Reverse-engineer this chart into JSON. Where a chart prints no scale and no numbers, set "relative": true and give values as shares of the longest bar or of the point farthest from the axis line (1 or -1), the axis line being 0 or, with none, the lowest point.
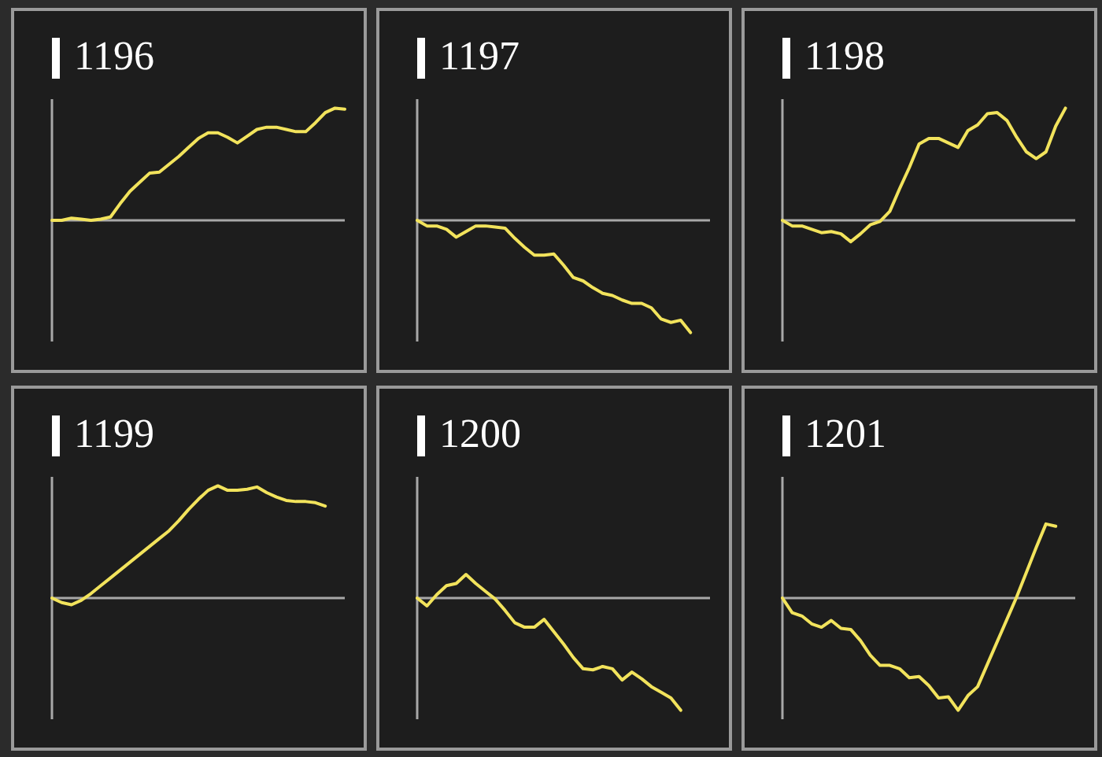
{
  "chart_data": [
    {
      "type": "line",
      "title": "1196",
      "relative": true,
      "categories": [
        null,
        null,
        null,
        null,
        null,
        null,
        null,
        null,
        null,
        null,
        null,
        null,
        null,
        null,
        null,
        null,
        null,
        null,
        null,
        null,
        null,
        null,
        null,
        null,
        null,
        null,
        null,
        null,
        null,
        null,
        null
      ],
      "series": [
        {
          "color": "#f2e35c",
          "values": [
            0,
            0,
            0.02,
            0.01,
            0,
            0.01,
            0.03,
            0.15,
            0.26,
            0.34,
            0.42,
            0.43,
            0.5,
            0.57,
            0.65,
            0.73,
            0.78,
            0.78,
            0.74,
            0.69,
            0.75,
            0.81,
            0.83,
            0.83,
            0.81,
            0.79,
            0.79,
            0.87,
            0.96,
            1,
            0.99
          ]
        }
      ],
      "legend": false,
      "marker": "none"
    },
    {
      "type": "line",
      "title": "1197",
      "relative": true,
      "categories": [
        null,
        null,
        null,
        null,
        null,
        null,
        null,
        null,
        null,
        null,
        null,
        null,
        null,
        null,
        null,
        null,
        null,
        null,
        null,
        null,
        null,
        null,
        null,
        null,
        null,
        null,
        null,
        null,
        null,
        null,
        null
      ],
      "series": [
        {
          "color": "#f2e35c",
          "values": [
            0,
            -0.05,
            -0.05,
            -0.08,
            -0.15,
            -0.1,
            -0.05,
            -0.05,
            -0.06,
            -0.07,
            -0.16,
            -0.24,
            -0.31,
            -0.31,
            -0.3,
            -0.4,
            -0.51,
            -0.54,
            -0.6,
            -0.65,
            -0.67,
            -0.71,
            -0.74,
            -0.74,
            -0.78,
            -0.88,
            -0.91,
            -0.89,
            -1,
            null,
            null
          ]
        }
      ],
      "legend": false,
      "marker": "none"
    },
    {
      "type": "line",
      "title": "1198",
      "relative": true,
      "categories": [
        null,
        null,
        null,
        null,
        null,
        null,
        null,
        null,
        null,
        null,
        null,
        null,
        null,
        null,
        null,
        null,
        null,
        null,
        null,
        null,
        null,
        null,
        null,
        null,
        null,
        null,
        null,
        null,
        null,
        null,
        null
      ],
      "series": [
        {
          "color": "#f2e35c",
          "values": [
            0,
            -0.05,
            -0.05,
            -0.08,
            -0.11,
            -0.1,
            -0.12,
            -0.19,
            -0.12,
            -0.04,
            -0.01,
            0.08,
            0.28,
            0.47,
            0.68,
            0.73,
            0.73,
            0.69,
            0.65,
            0.8,
            0.85,
            0.95,
            0.96,
            0.89,
            0.74,
            0.61,
            0.55,
            0.61,
            0.84,
            1,
            null
          ]
        }
      ],
      "legend": false,
      "marker": "none"
    },
    {
      "type": "line",
      "title": "1199",
      "relative": true,
      "categories": [
        null,
        null,
        null,
        null,
        null,
        null,
        null,
        null,
        null,
        null,
        null,
        null,
        null,
        null,
        null,
        null,
        null,
        null,
        null,
        null,
        null,
        null,
        null,
        null,
        null,
        null,
        null,
        null,
        null,
        null,
        null
      ],
      "series": [
        {
          "color": "#f2e35c",
          "values": [
            0,
            -0.04,
            -0.06,
            -0.02,
            0.04,
            0.11,
            0.18,
            0.25,
            0.32,
            0.39,
            0.46,
            0.53,
            0.6,
            0.69,
            0.79,
            0.88,
            0.96,
            1,
            0.96,
            0.96,
            0.97,
            0.99,
            0.94,
            0.9,
            0.87,
            0.86,
            0.86,
            0.85,
            0.82,
            null,
            null
          ]
        }
      ],
      "legend": false,
      "marker": "none"
    },
    {
      "type": "line",
      "title": "1200",
      "relative": true,
      "categories": [
        null,
        null,
        null,
        null,
        null,
        null,
        null,
        null,
        null,
        null,
        null,
        null,
        null,
        null,
        null,
        null,
        null,
        null,
        null,
        null,
        null,
        null,
        null,
        null,
        null,
        null,
        null,
        null,
        null,
        null,
        null
      ],
      "series": [
        {
          "color": "#f2e35c",
          "values": [
            0,
            -0.07,
            0.03,
            0.11,
            0.13,
            0.21,
            0.13,
            0.06,
            -0.01,
            -0.11,
            -0.22,
            -0.26,
            -0.26,
            -0.19,
            -0.3,
            -0.41,
            -0.53,
            -0.63,
            -0.64,
            -0.61,
            -0.63,
            -0.73,
            -0.66,
            -0.72,
            -0.79,
            -0.84,
            -0.89,
            -1,
            null,
            null,
            null
          ]
        }
      ],
      "legend": false,
      "marker": "none"
    },
    {
      "type": "line",
      "title": "1201",
      "relative": true,
      "categories": [
        null,
        null,
        null,
        null,
        null,
        null,
        null,
        null,
        null,
        null,
        null,
        null,
        null,
        null,
        null,
        null,
        null,
        null,
        null,
        null,
        null,
        null,
        null,
        null,
        null,
        null,
        null,
        null,
        null,
        null,
        null
      ],
      "series": [
        {
          "color": "#f2e35c",
          "values": [
            0,
            -0.13,
            -0.16,
            -0.23,
            -0.26,
            -0.2,
            -0.27,
            -0.28,
            -0.38,
            -0.51,
            -0.6,
            -0.6,
            -0.63,
            -0.71,
            -0.7,
            -0.78,
            -0.89,
            -0.88,
            -1,
            -0.87,
            -0.79,
            -0.59,
            -0.39,
            -0.19,
            0.01,
            0.23,
            0.45,
            0.66,
            0.64,
            null,
            null
          ]
        }
      ],
      "legend": false,
      "marker": "none"
    }
  ]
}
